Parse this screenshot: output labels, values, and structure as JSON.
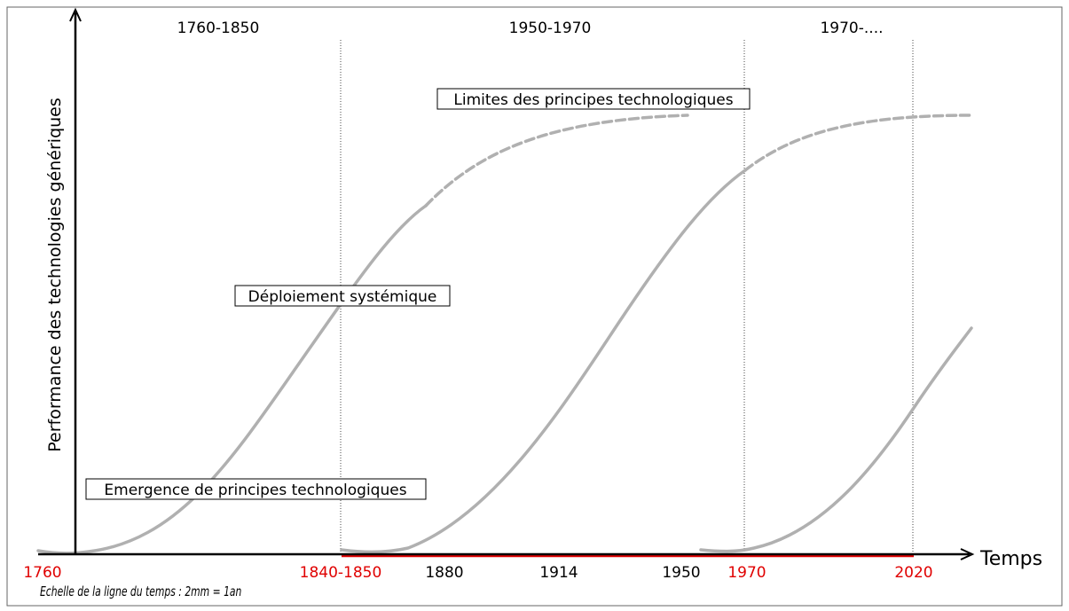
{
  "periods": [
    "1760-1850",
    "1950-1970",
    "1970-...."
  ],
  "y_axis_label": "Performance des technologies génériques",
  "x_axis_label": "Temps",
  "phases": [
    "Limites des principes technologiques",
    "Déploiement systémique",
    "Emergence de principes technologiques"
  ],
  "timeline": [
    "1760",
    "1840-1850",
    "1880",
    "1914",
    "1950",
    "1970",
    "2020"
  ],
  "scale_note": "Echelle  de la ligne du temps : 2mm = 1an"
}
